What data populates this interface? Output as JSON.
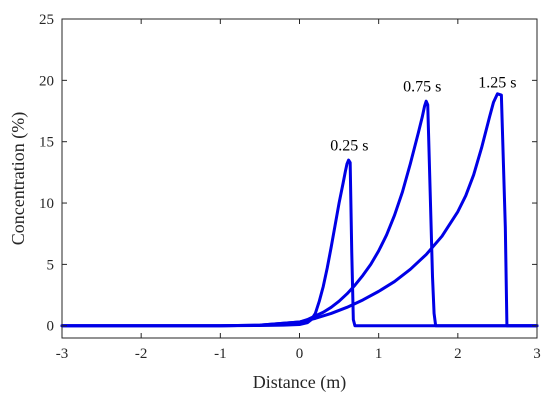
{
  "chart_data": {
    "type": "line",
    "title": "",
    "xlabel": "Distance (m)",
    "ylabel": "Concentration (%)",
    "xlim": [
      -3,
      3
    ],
    "ylim": [
      -1,
      25
    ],
    "xticks": [
      -3,
      -2,
      -1,
      0,
      1,
      2,
      3
    ],
    "yticks": [
      0,
      5,
      10,
      15,
      20,
      25
    ],
    "xtick_labels": [
      "-3",
      "-2",
      "-1",
      "0",
      "1",
      "2",
      "3"
    ],
    "ytick_labels": [
      "0",
      "5",
      "10",
      "15",
      "20",
      "25"
    ],
    "grid": false,
    "legend": "none",
    "line_color": "#0000e6",
    "series": [
      {
        "x": [
          -3,
          -1.0,
          -0.5,
          -0.2,
          0.0,
          0.1,
          0.15,
          0.2,
          0.25,
          0.3,
          0.35,
          0.4,
          0.45,
          0.5,
          0.55,
          0.58,
          0.6,
          0.62,
          0.64,
          0.66,
          0.68,
          0.7,
          3
        ],
        "y": [
          0,
          0,
          0.02,
          0.05,
          0.1,
          0.25,
          0.5,
          1.0,
          2.0,
          3.2,
          4.7,
          6.4,
          8.2,
          10.0,
          11.6,
          12.6,
          13.2,
          13.5,
          13.3,
          6.0,
          0.5,
          0,
          0
        ]
      },
      {
        "x": [
          -3,
          -1.0,
          -0.5,
          0.0,
          0.1,
          0.2,
          0.3,
          0.4,
          0.5,
          0.6,
          0.7,
          0.8,
          0.9,
          1.0,
          1.1,
          1.2,
          1.3,
          1.4,
          1.5,
          1.55,
          1.58,
          1.6,
          1.62,
          1.65,
          1.68,
          1.7,
          1.72,
          3
        ],
        "y": [
          0,
          0,
          0.05,
          0.3,
          0.5,
          0.8,
          1.1,
          1.5,
          2.0,
          2.6,
          3.3,
          4.1,
          5.0,
          6.1,
          7.4,
          9.0,
          10.9,
          13.2,
          15.7,
          17.0,
          17.9,
          18.3,
          18.0,
          11.0,
          4.0,
          1.0,
          0,
          0
        ]
      },
      {
        "x": [
          -3,
          -1.0,
          -0.5,
          0.0,
          0.2,
          0.4,
          0.6,
          0.8,
          1.0,
          1.2,
          1.4,
          1.6,
          1.8,
          2.0,
          2.1,
          2.2,
          2.3,
          2.4,
          2.45,
          2.5,
          2.55,
          2.6,
          2.62,
          3
        ],
        "y": [
          0,
          0,
          0.05,
          0.3,
          0.6,
          1.0,
          1.5,
          2.1,
          2.8,
          3.6,
          4.6,
          5.8,
          7.3,
          9.3,
          10.6,
          12.3,
          14.5,
          17.0,
          18.2,
          18.9,
          18.8,
          8.0,
          0,
          0
        ]
      }
    ],
    "annotations": [
      {
        "text": "0.25 s",
        "x": 0.63,
        "y": 14.3
      },
      {
        "text": "0.75 s",
        "x": 1.55,
        "y": 19.1
      },
      {
        "text": "1.25 s",
        "x": 2.5,
        "y": 19.4
      }
    ]
  }
}
